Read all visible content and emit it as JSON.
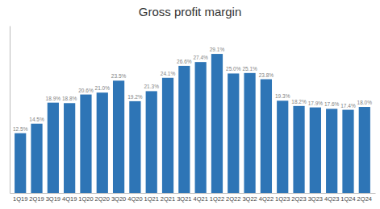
{
  "chart_data": {
    "type": "bar",
    "title": "Gross profit margin",
    "categories": [
      "1Q19",
      "2Q19",
      "3Q19",
      "4Q19",
      "1Q20",
      "2Q20",
      "3Q20",
      "4Q20",
      "1Q21",
      "2Q21",
      "3Q21",
      "4Q21",
      "1Q22",
      "2Q22",
      "3Q22",
      "4Q22",
      "1Q23",
      "2Q23",
      "3Q23",
      "4Q23",
      "1Q24",
      "2Q24"
    ],
    "values": [
      12.5,
      14.5,
      18.9,
      18.8,
      20.6,
      21.0,
      23.5,
      19.2,
      21.3,
      24.1,
      26.6,
      27.4,
      29.1,
      25.0,
      25.1,
      23.8,
      19.3,
      18.2,
      17.9,
      17.6,
      17.4,
      18.0
    ],
    "value_labels": [
      "12.5%",
      "14.5%",
      "18.9%",
      "18.8%",
      "20.6%",
      "21.0%",
      "23.5%",
      "19.2%",
      "21.3%",
      "24.1%",
      "26.6%",
      "27.4%",
      "29.1%",
      "25.0%",
      "25.1%",
      "23.8%",
      "19.3%",
      "18.2%",
      "17.9%",
      "17.6%",
      "17.4%",
      "18.0%"
    ],
    "color": "#2E75B6",
    "ylim": [
      0,
      35
    ],
    "data_labels": true,
    "tick_labels": "x",
    "grid": false
  }
}
